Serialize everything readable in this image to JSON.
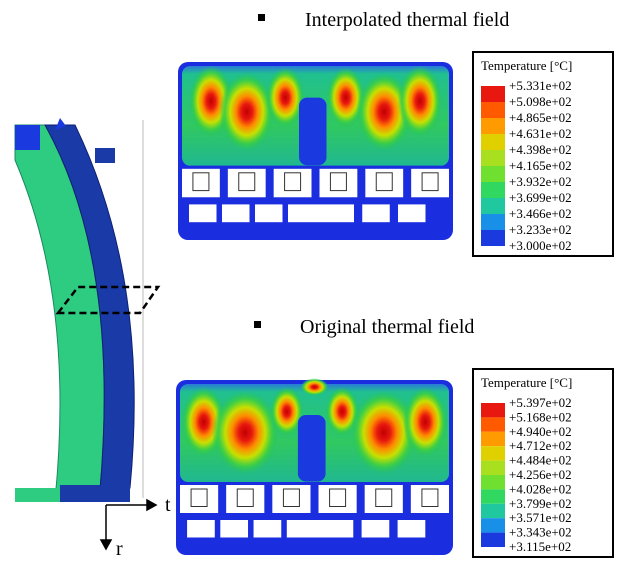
{
  "panels": [
    {
      "title": "Interpolated thermal field",
      "legend": {
        "title": "Temperature [°C]",
        "labels": [
          "+5.331e+02",
          "+5.098e+02",
          "+4.865e+02",
          "+4.631e+02",
          "+4.398e+02",
          "+4.165e+02",
          "+3.932e+02",
          "+3.699e+02",
          "+3.466e+02",
          "+3.233e+02",
          "+3.000e+02"
        ]
      }
    },
    {
      "title": "Original thermal field",
      "legend": {
        "title": "Temperature [°C]",
        "labels": [
          "+5.397e+02",
          "+5.168e+02",
          "+4.940e+02",
          "+4.712e+02",
          "+4.484e+02",
          "+4.256e+02",
          "+4.028e+02",
          "+3.799e+02",
          "+3.571e+02",
          "+3.343e+02",
          "+3.115e+02"
        ]
      }
    }
  ],
  "axes": {
    "horizontal": "t",
    "vertical": "r"
  }
}
